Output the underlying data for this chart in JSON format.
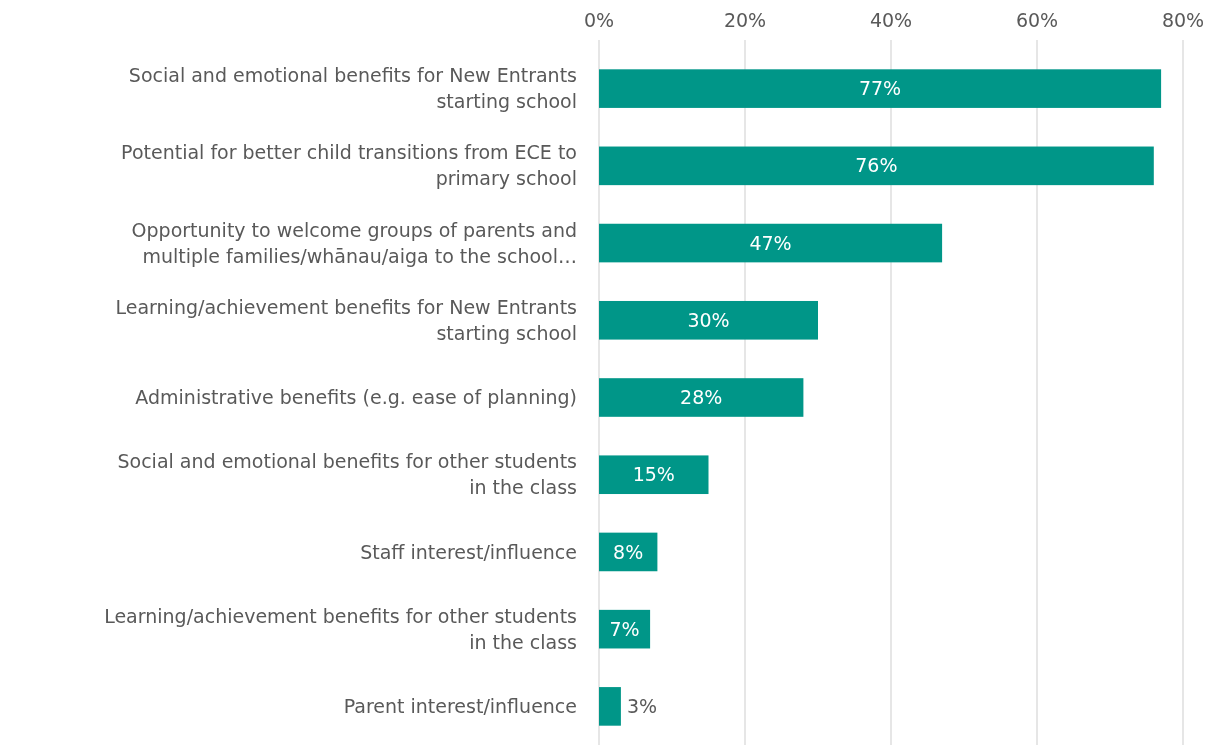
{
  "chart_data": {
    "type": "bar",
    "orientation": "horizontal",
    "categories": [
      "Social and emotional benefits for New Entrants starting school",
      "Potential for better child transitions from ECE to primary school",
      "Opportunity to welcome groups of parents and multiple families/whānau/aiga to the school…",
      "Learning/achievement benefits for New Entrants starting school",
      "Administrative benefits (e.g. ease of planning)",
      "Social and emotional benefits for other students in the class",
      "Staff interest/influence",
      "Learning/achievement benefits for other students in the class",
      "Parent interest/influence"
    ],
    "values": [
      77,
      76,
      47,
      30,
      28,
      15,
      8,
      7,
      3
    ],
    "value_labels": [
      "77%",
      "76%",
      "47%",
      "30%",
      "28%",
      "15%",
      "8%",
      "7%",
      "3%"
    ],
    "color": "#009688",
    "xlim": [
      0,
      80
    ],
    "xticks": [
      {
        "value": 0,
        "label": "0%"
      },
      {
        "value": 20,
        "label": "20%"
      },
      {
        "value": 40,
        "label": "40%"
      },
      {
        "value": 60,
        "label": "60%"
      },
      {
        "value": 80,
        "label": "80%"
      }
    ],
    "grid": "x"
  }
}
